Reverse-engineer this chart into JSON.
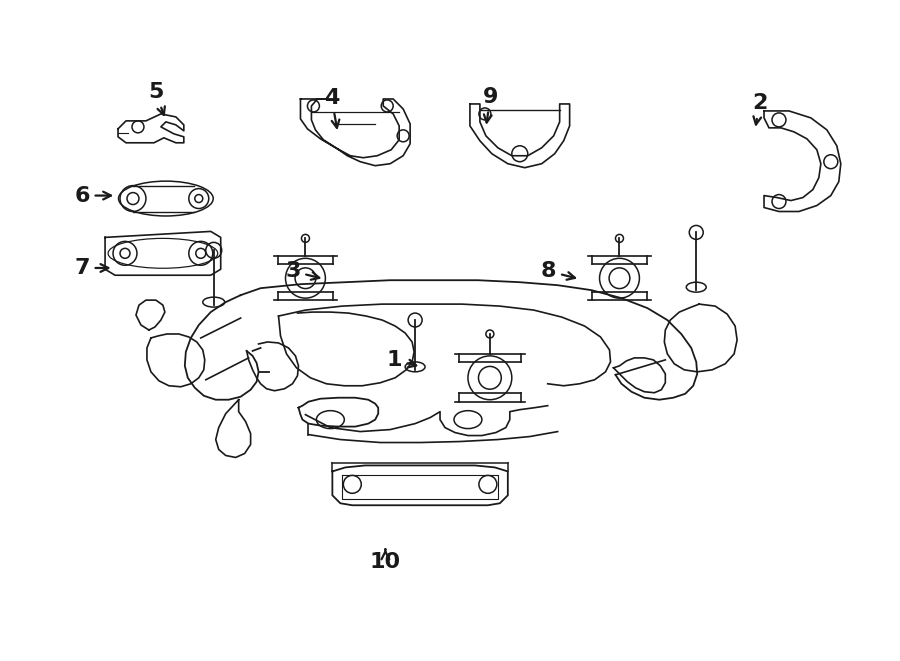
{
  "bg_color": "#ffffff",
  "line_color": "#1a1a1a",
  "fig_width": 9.0,
  "fig_height": 6.61,
  "dpi": 100,
  "label_positions": {
    "1": [
      0.438,
      0.455,
      0.468,
      0.445
    ],
    "2": [
      0.845,
      0.845,
      0.84,
      0.805
    ],
    "3": [
      0.325,
      0.59,
      0.36,
      0.578
    ],
    "4": [
      0.368,
      0.853,
      0.375,
      0.8
    ],
    "5": [
      0.172,
      0.862,
      0.183,
      0.82
    ],
    "6": [
      0.09,
      0.705,
      0.128,
      0.705
    ],
    "7": [
      0.09,
      0.595,
      0.125,
      0.595
    ],
    "8": [
      0.61,
      0.59,
      0.645,
      0.578
    ],
    "9": [
      0.545,
      0.855,
      0.54,
      0.808
    ],
    "10": [
      0.428,
      0.148,
      0.428,
      0.168
    ]
  }
}
